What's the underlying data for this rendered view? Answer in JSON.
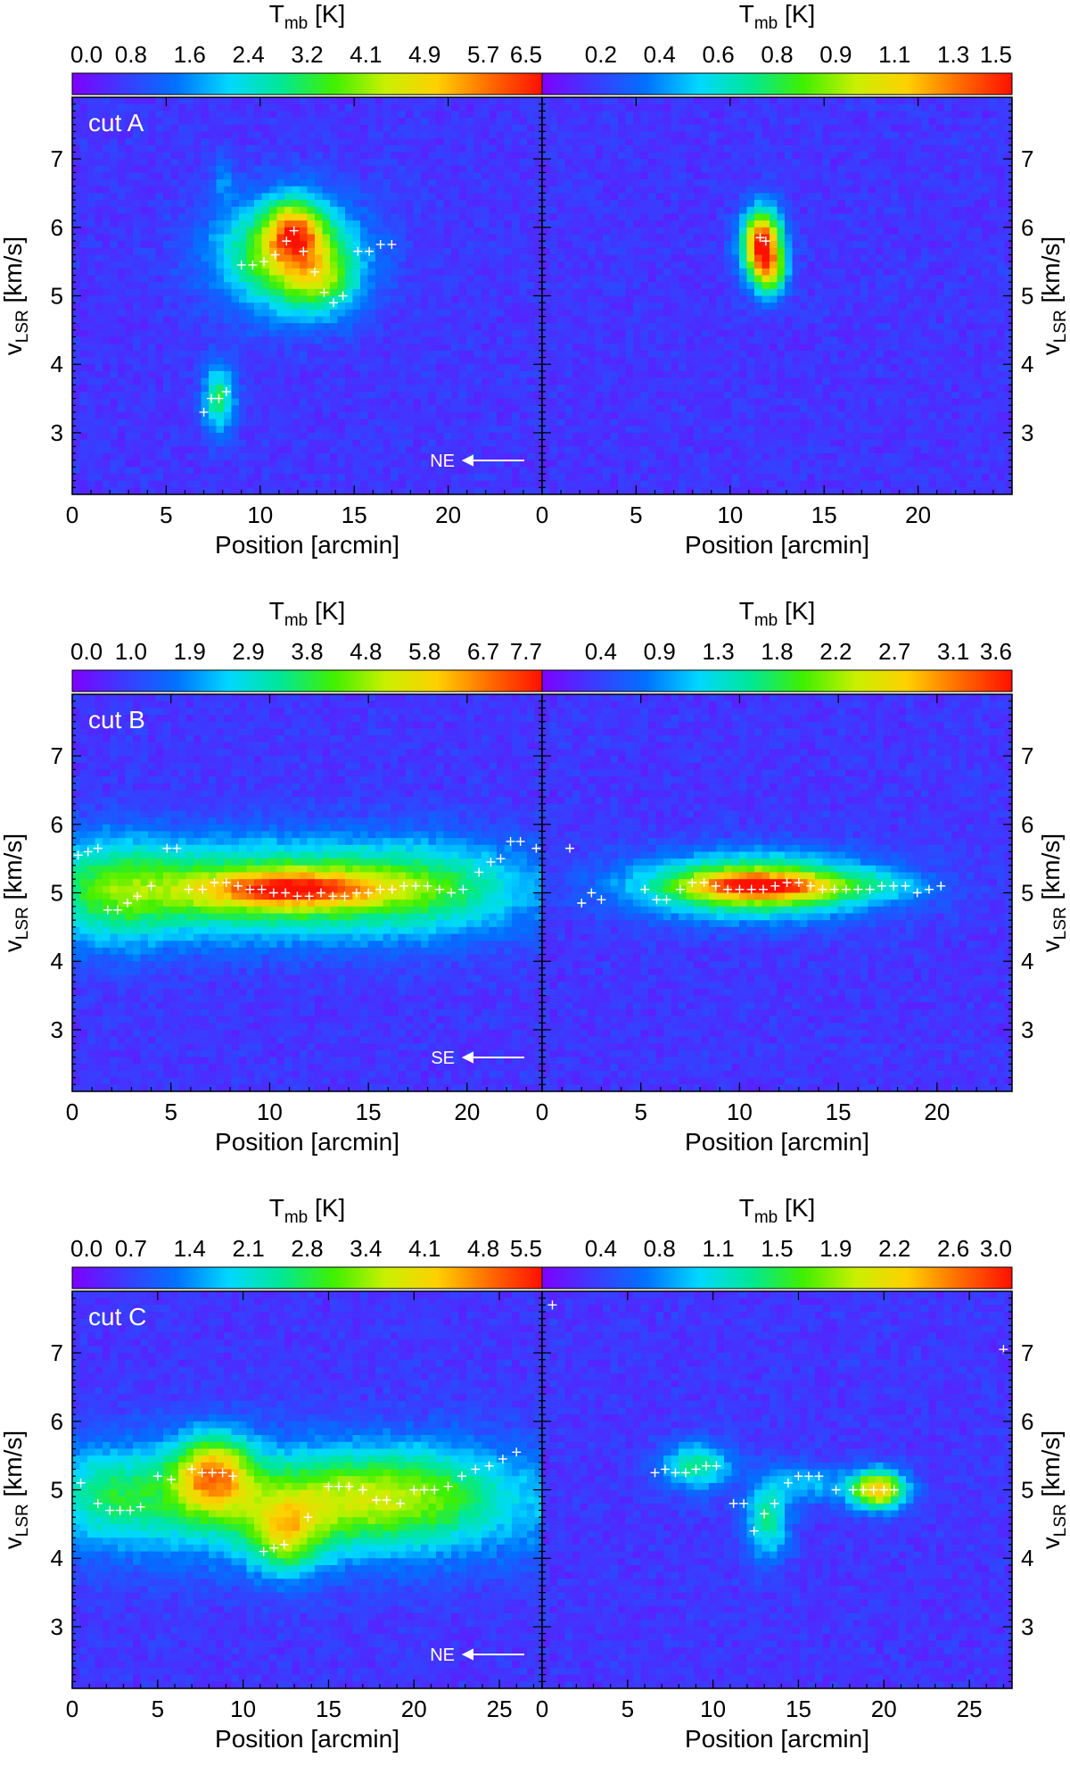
{
  "figure": {
    "rows": [
      {
        "cut_label": "cut A",
        "direction_label": "NE",
        "xlabel": "Position [arcmin]",
        "ylabel": "v",
        "ylabel_sub": "LSR",
        "ylabel_unit": " [km/s]",
        "left": {
          "cbar_title": "T",
          "cbar_sub": "mb",
          "cbar_unit": " [K]",
          "cbar_ticks": [
            "0.0",
            "0.8",
            "1.6",
            "2.4",
            "3.2",
            "4.1",
            "4.9",
            "5.7",
            "6.5"
          ],
          "x_ticks": [
            "0",
            "5",
            "10",
            "15",
            "20"
          ],
          "y_ticks": [
            "3",
            "4",
            "5",
            "6",
            "7"
          ]
        },
        "right": {
          "cbar_title": "T",
          "cbar_sub": "mb",
          "cbar_unit": " [K]",
          "cbar_ticks": [
            "0.2",
            "0.4",
            "0.6",
            "0.8",
            "0.9",
            "1.1",
            "1.3",
            "1.5"
          ],
          "x_ticks": [
            "0",
            "5",
            "10",
            "15",
            "20"
          ],
          "y_ticks": [
            "3",
            "4",
            "5",
            "6",
            "7"
          ]
        }
      },
      {
        "cut_label": "cut B",
        "direction_label": "SE",
        "xlabel": "Position [arcmin]",
        "ylabel": "v",
        "ylabel_sub": "LSR",
        "ylabel_unit": " [km/s]",
        "left": {
          "cbar_title": "T",
          "cbar_sub": "mb",
          "cbar_unit": " [K]",
          "cbar_ticks": [
            "0.0",
            "1.0",
            "1.9",
            "2.9",
            "3.8",
            "4.8",
            "5.8",
            "6.7",
            "7.7"
          ],
          "x_ticks": [
            "0",
            "5",
            "10",
            "15",
            "20"
          ],
          "y_ticks": [
            "3",
            "4",
            "5",
            "6",
            "7"
          ]
        },
        "right": {
          "cbar_title": "T",
          "cbar_sub": "mb",
          "cbar_unit": " [K]",
          "cbar_ticks": [
            "0.4",
            "0.9",
            "1.3",
            "1.8",
            "2.2",
            "2.7",
            "3.1",
            "3.6"
          ],
          "x_ticks": [
            "0",
            "5",
            "10",
            "15",
            "20"
          ],
          "y_ticks": [
            "3",
            "4",
            "5",
            "6",
            "7"
          ]
        }
      },
      {
        "cut_label": "cut C",
        "direction_label": "NE",
        "xlabel": "Position [arcmin]",
        "ylabel": "v",
        "ylabel_sub": "LSR",
        "ylabel_unit": " [km/s]",
        "left": {
          "cbar_title": "T",
          "cbar_sub": "mb",
          "cbar_unit": " [K]",
          "cbar_ticks": [
            "0.0",
            "0.7",
            "1.4",
            "2.1",
            "2.8",
            "3.4",
            "4.1",
            "4.8",
            "5.5"
          ],
          "x_ticks": [
            "0",
            "5",
            "10",
            "15",
            "20",
            "25"
          ],
          "y_ticks": [
            "3",
            "4",
            "5",
            "6",
            "7"
          ]
        },
        "right": {
          "cbar_title": "T",
          "cbar_sub": "mb",
          "cbar_unit": " [K]",
          "cbar_ticks": [
            "0.4",
            "0.8",
            "1.1",
            "1.5",
            "1.9",
            "2.2",
            "2.6",
            "3.0"
          ],
          "x_ticks": [
            "0",
            "5",
            "10",
            "15",
            "20",
            "25"
          ],
          "y_ticks": [
            "3",
            "4",
            "5",
            "6",
            "7"
          ]
        }
      }
    ],
    "colors": {
      "background": "#8a2be2",
      "colormap": [
        "#7f00ff",
        "#3b3bff",
        "#0072ff",
        "#00d8ff",
        "#00e896",
        "#3ff000",
        "#c8f000",
        "#ffd000",
        "#ff6a00",
        "#ff1000"
      ],
      "marker": "#ffffff"
    }
  },
  "chart_data": [
    {
      "type": "heatmap",
      "panel": "cut A left",
      "title": "T_mb [K]",
      "xlabel": "Position [arcmin]",
      "ylabel": "v_LSR [km/s]",
      "xlim": [
        0,
        25
      ],
      "ylim": [
        2.1,
        7.9
      ],
      "clim": [
        0.0,
        6.5
      ],
      "colorbar_ticks": [
        0.0,
        0.8,
        1.6,
        2.4,
        3.2,
        4.1,
        4.9,
        5.7,
        6.5
      ],
      "annotations": [
        "cut A",
        "NE"
      ],
      "blobs": [
        {
          "x": 11.5,
          "y": 5.6,
          "sx": 2.6,
          "sy": 0.55,
          "amp": 0.55
        },
        {
          "x": 11.8,
          "y": 5.95,
          "sx": 1.0,
          "sy": 0.3,
          "amp": 0.45
        },
        {
          "x": 13.2,
          "y": 5.2,
          "sx": 1.4,
          "sy": 0.35,
          "amp": 0.25
        },
        {
          "x": 7.8,
          "y": 3.5,
          "sx": 0.6,
          "sy": 0.35,
          "amp": 0.38
        },
        {
          "x": 8.0,
          "y": 6.7,
          "sx": 0.4,
          "sy": 0.25,
          "amp": 0.12
        }
      ],
      "peak_velocities": [
        {
          "x": 7.0,
          "y": 3.3
        },
        {
          "x": 7.4,
          "y": 3.5
        },
        {
          "x": 7.8,
          "y": 3.5
        },
        {
          "x": 8.2,
          "y": 3.6
        },
        {
          "x": 9.0,
          "y": 5.45
        },
        {
          "x": 9.6,
          "y": 5.45
        },
        {
          "x": 10.2,
          "y": 5.5
        },
        {
          "x": 10.8,
          "y": 5.6
        },
        {
          "x": 11.4,
          "y": 5.8
        },
        {
          "x": 11.8,
          "y": 5.95
        },
        {
          "x": 12.3,
          "y": 5.65
        },
        {
          "x": 12.9,
          "y": 5.35
        },
        {
          "x": 13.4,
          "y": 5.05
        },
        {
          "x": 13.9,
          "y": 4.9
        },
        {
          "x": 14.4,
          "y": 5.0
        },
        {
          "x": 15.2,
          "y": 5.65
        },
        {
          "x": 15.8,
          "y": 5.65
        },
        {
          "x": 16.4,
          "y": 5.75
        },
        {
          "x": 17.0,
          "y": 5.75
        }
      ]
    },
    {
      "type": "heatmap",
      "panel": "cut A right",
      "title": "T_mb [K]",
      "xlabel": "Position [arcmin]",
      "ylabel": "v_LSR [km/s]",
      "xlim": [
        0,
        25
      ],
      "ylim": [
        2.1,
        7.9
      ],
      "clim": [
        0.1,
        1.5
      ],
      "colorbar_ticks": [
        0.2,
        0.4,
        0.6,
        0.8,
        0.9,
        1.1,
        1.3,
        1.5
      ],
      "blobs": [
        {
          "x": 11.7,
          "y": 5.75,
          "sx": 0.75,
          "sy": 0.35,
          "amp": 0.9
        },
        {
          "x": 12.2,
          "y": 5.3,
          "sx": 0.6,
          "sy": 0.25,
          "amp": 0.35
        }
      ],
      "peak_velocities": [
        {
          "x": 11.6,
          "y": 5.85
        },
        {
          "x": 11.9,
          "y": 5.8
        }
      ]
    },
    {
      "type": "heatmap",
      "panel": "cut B left",
      "title": "T_mb [K]",
      "xlabel": "Position [arcmin]",
      "ylabel": "v_LSR [km/s]",
      "xlim": [
        0,
        23.8
      ],
      "ylim": [
        2.1,
        7.9
      ],
      "clim": [
        0.0,
        7.7
      ],
      "colorbar_ticks": [
        0.0,
        1.0,
        1.9,
        2.9,
        3.8,
        4.8,
        5.8,
        6.7,
        7.7
      ],
      "annotations": [
        "cut B",
        "SE"
      ],
      "blobs": [
        {
          "x": 10.5,
          "y": 5.05,
          "sx": 8.5,
          "sy": 0.5,
          "amp": 0.5
        },
        {
          "x": 11.0,
          "y": 5.05,
          "sx": 3.2,
          "sy": 0.18,
          "amp": 0.45
        },
        {
          "x": 2.0,
          "y": 5.0,
          "sx": 2.2,
          "sy": 0.6,
          "amp": 0.2
        },
        {
          "x": 18.0,
          "y": 5.1,
          "sx": 3.0,
          "sy": 0.45,
          "amp": 0.12
        }
      ],
      "peak_velocities": [
        {
          "x": 0.3,
          "y": 5.55
        },
        {
          "x": 0.8,
          "y": 5.6
        },
        {
          "x": 1.3,
          "y": 5.65
        },
        {
          "x": 1.8,
          "y": 4.75
        },
        {
          "x": 2.3,
          "y": 4.75
        },
        {
          "x": 2.8,
          "y": 4.85
        },
        {
          "x": 3.3,
          "y": 4.95
        },
        {
          "x": 4.0,
          "y": 5.1
        },
        {
          "x": 4.8,
          "y": 5.65
        },
        {
          "x": 5.3,
          "y": 5.65
        },
        {
          "x": 5.9,
          "y": 5.05
        },
        {
          "x": 6.6,
          "y": 5.05
        },
        {
          "x": 7.2,
          "y": 5.15
        },
        {
          "x": 7.8,
          "y": 5.15
        },
        {
          "x": 8.4,
          "y": 5.1
        },
        {
          "x": 9.0,
          "y": 5.05
        },
        {
          "x": 9.6,
          "y": 5.05
        },
        {
          "x": 10.2,
          "y": 5.0
        },
        {
          "x": 10.8,
          "y": 5.0
        },
        {
          "x": 11.4,
          "y": 4.95
        },
        {
          "x": 12.0,
          "y": 4.95
        },
        {
          "x": 12.6,
          "y": 5.0
        },
        {
          "x": 13.2,
          "y": 4.95
        },
        {
          "x": 13.8,
          "y": 4.95
        },
        {
          "x": 14.4,
          "y": 5.0
        },
        {
          "x": 15.0,
          "y": 5.0
        },
        {
          "x": 15.6,
          "y": 5.05
        },
        {
          "x": 16.2,
          "y": 5.05
        },
        {
          "x": 16.8,
          "y": 5.1
        },
        {
          "x": 17.4,
          "y": 5.1
        },
        {
          "x": 18.0,
          "y": 5.1
        },
        {
          "x": 18.6,
          "y": 5.05
        },
        {
          "x": 19.2,
          "y": 5.0
        },
        {
          "x": 19.8,
          "y": 5.05
        },
        {
          "x": 20.6,
          "y": 5.3
        },
        {
          "x": 21.2,
          "y": 5.45
        },
        {
          "x": 21.7,
          "y": 5.5
        },
        {
          "x": 22.2,
          "y": 5.75
        },
        {
          "x": 22.7,
          "y": 5.75
        },
        {
          "x": 23.5,
          "y": 5.65
        }
      ]
    },
    {
      "type": "heatmap",
      "panel": "cut B right",
      "title": "T_mb [K]",
      "xlabel": "Position [arcmin]",
      "ylabel": "v_LSR [km/s]",
      "xlim": [
        0,
        23.8
      ],
      "ylim": [
        2.1,
        7.9
      ],
      "clim": [
        0.0,
        3.6
      ],
      "colorbar_ticks": [
        0.4,
        0.9,
        1.3,
        1.8,
        2.2,
        2.7,
        3.1,
        3.6
      ],
      "blobs": [
        {
          "x": 10.8,
          "y": 5.1,
          "sx": 4.2,
          "sy": 0.32,
          "amp": 0.6
        },
        {
          "x": 11.2,
          "y": 5.1,
          "sx": 2.6,
          "sy": 0.13,
          "amp": 0.4
        },
        {
          "x": 17.5,
          "y": 5.1,
          "sx": 1.6,
          "sy": 0.15,
          "amp": 0.12
        }
      ],
      "peak_velocities": [
        {
          "x": 1.4,
          "y": 5.65
        },
        {
          "x": 2.0,
          "y": 4.85
        },
        {
          "x": 2.5,
          "y": 5.0
        },
        {
          "x": 3.0,
          "y": 4.9
        },
        {
          "x": 5.2,
          "y": 5.05
        },
        {
          "x": 5.8,
          "y": 4.9
        },
        {
          "x": 6.3,
          "y": 4.9
        },
        {
          "x": 7.0,
          "y": 5.05
        },
        {
          "x": 7.6,
          "y": 5.15
        },
        {
          "x": 8.2,
          "y": 5.15
        },
        {
          "x": 8.8,
          "y": 5.1
        },
        {
          "x": 9.4,
          "y": 5.05
        },
        {
          "x": 10.0,
          "y": 5.05
        },
        {
          "x": 10.6,
          "y": 5.05
        },
        {
          "x": 11.2,
          "y": 5.05
        },
        {
          "x": 11.8,
          "y": 5.1
        },
        {
          "x": 12.4,
          "y": 5.15
        },
        {
          "x": 13.0,
          "y": 5.15
        },
        {
          "x": 13.6,
          "y": 5.1
        },
        {
          "x": 14.2,
          "y": 5.05
        },
        {
          "x": 14.8,
          "y": 5.05
        },
        {
          "x": 15.4,
          "y": 5.05
        },
        {
          "x": 16.0,
          "y": 5.05
        },
        {
          "x": 16.6,
          "y": 5.05
        },
        {
          "x": 17.2,
          "y": 5.1
        },
        {
          "x": 17.8,
          "y": 5.1
        },
        {
          "x": 18.4,
          "y": 5.1
        },
        {
          "x": 19.0,
          "y": 5.0
        },
        {
          "x": 19.6,
          "y": 5.05
        },
        {
          "x": 20.2,
          "y": 5.1
        }
      ]
    },
    {
      "type": "heatmap",
      "panel": "cut C left",
      "title": "T_mb [K]",
      "xlabel": "Position [arcmin]",
      "ylabel": "v_LSR [km/s]",
      "xlim": [
        0,
        27.5
      ],
      "ylim": [
        2.1,
        7.9
      ],
      "clim": [
        0.0,
        5.5
      ],
      "colorbar_ticks": [
        0.0,
        0.7,
        1.4,
        2.1,
        2.8,
        3.4,
        4.1,
        4.8,
        5.5
      ],
      "annotations": [
        "cut C",
        "NE"
      ],
      "blobs": [
        {
          "x": 13.5,
          "y": 4.8,
          "sx": 12.0,
          "sy": 0.6,
          "amp": 0.35
        },
        {
          "x": 8.2,
          "y": 5.25,
          "sx": 1.6,
          "sy": 0.4,
          "amp": 0.55
        },
        {
          "x": 12.5,
          "y": 4.3,
          "sx": 1.5,
          "sy": 0.4,
          "amp": 0.35
        },
        {
          "x": 16.0,
          "y": 4.9,
          "sx": 3.5,
          "sy": 0.45,
          "amp": 0.2
        },
        {
          "x": 21.0,
          "y": 5.0,
          "sx": 3.0,
          "sy": 0.5,
          "amp": 0.15
        },
        {
          "x": 2.5,
          "y": 5.0,
          "sx": 2.5,
          "sy": 0.45,
          "amp": 0.18
        }
      ],
      "peak_velocities": [
        {
          "x": 0.5,
          "y": 5.1
        },
        {
          "x": 1.5,
          "y": 4.8
        },
        {
          "x": 2.2,
          "y": 4.7
        },
        {
          "x": 2.8,
          "y": 4.7
        },
        {
          "x": 3.4,
          "y": 4.7
        },
        {
          "x": 4.0,
          "y": 4.75
        },
        {
          "x": 5.0,
          "y": 5.2
        },
        {
          "x": 5.8,
          "y": 5.15
        },
        {
          "x": 7.0,
          "y": 5.3
        },
        {
          "x": 7.6,
          "y": 5.25
        },
        {
          "x": 8.2,
          "y": 5.25
        },
        {
          "x": 8.8,
          "y": 5.25
        },
        {
          "x": 9.4,
          "y": 5.2
        },
        {
          "x": 11.2,
          "y": 4.1
        },
        {
          "x": 11.8,
          "y": 4.15
        },
        {
          "x": 12.4,
          "y": 4.2
        },
        {
          "x": 13.8,
          "y": 4.6
        },
        {
          "x": 15.0,
          "y": 5.05
        },
        {
          "x": 15.6,
          "y": 5.05
        },
        {
          "x": 16.2,
          "y": 5.05
        },
        {
          "x": 17.0,
          "y": 5.0
        },
        {
          "x": 17.8,
          "y": 4.85
        },
        {
          "x": 18.4,
          "y": 4.85
        },
        {
          "x": 19.2,
          "y": 4.8
        },
        {
          "x": 20.0,
          "y": 5.0
        },
        {
          "x": 20.6,
          "y": 5.0
        },
        {
          "x": 21.2,
          "y": 5.0
        },
        {
          "x": 22.0,
          "y": 5.05
        },
        {
          "x": 22.8,
          "y": 5.2
        },
        {
          "x": 23.6,
          "y": 5.3
        },
        {
          "x": 24.4,
          "y": 5.35
        },
        {
          "x": 25.2,
          "y": 5.45
        },
        {
          "x": 26.0,
          "y": 5.55
        }
      ]
    },
    {
      "type": "heatmap",
      "panel": "cut C right",
      "title": "T_mb [K]",
      "xlabel": "Position [arcmin]",
      "ylabel": "v_LSR [km/s]",
      "xlim": [
        0,
        27.5
      ],
      "ylim": [
        2.1,
        7.9
      ],
      "clim": [
        0.0,
        3.0
      ],
      "colorbar_ticks": [
        0.4,
        0.8,
        1.1,
        1.5,
        1.9,
        2.2,
        2.6,
        3.0
      ],
      "blobs": [
        {
          "x": 9.0,
          "y": 5.35,
          "sx": 1.5,
          "sy": 0.25,
          "amp": 0.35
        },
        {
          "x": 13.2,
          "y": 4.55,
          "sx": 0.9,
          "sy": 0.4,
          "amp": 0.35
        },
        {
          "x": 15.5,
          "y": 5.1,
          "sx": 1.5,
          "sy": 0.2,
          "amp": 0.2
        },
        {
          "x": 19.6,
          "y": 5.0,
          "sx": 1.2,
          "sy": 0.2,
          "amp": 0.7
        }
      ],
      "peak_velocities": [
        {
          "x": 6.6,
          "y": 5.25
        },
        {
          "x": 7.2,
          "y": 5.3
        },
        {
          "x": 7.8,
          "y": 5.25
        },
        {
          "x": 8.4,
          "y": 5.25
        },
        {
          "x": 9.0,
          "y": 5.3
        },
        {
          "x": 9.6,
          "y": 5.35
        },
        {
          "x": 10.2,
          "y": 5.35
        },
        {
          "x": 11.2,
          "y": 4.8
        },
        {
          "x": 11.8,
          "y": 4.8
        },
        {
          "x": 12.4,
          "y": 4.4
        },
        {
          "x": 13.0,
          "y": 4.65
        },
        {
          "x": 13.6,
          "y": 4.8
        },
        {
          "x": 14.4,
          "y": 5.1
        },
        {
          "x": 15.0,
          "y": 5.2
        },
        {
          "x": 15.6,
          "y": 5.2
        },
        {
          "x": 16.2,
          "y": 5.2
        },
        {
          "x": 17.2,
          "y": 5.0
        },
        {
          "x": 18.2,
          "y": 5.0
        },
        {
          "x": 18.8,
          "y": 5.0
        },
        {
          "x": 19.4,
          "y": 5.0
        },
        {
          "x": 20.0,
          "y": 5.0
        },
        {
          "x": 20.6,
          "y": 5.0
        },
        {
          "x": 0.6,
          "y": 7.7
        },
        {
          "x": 27.0,
          "y": 7.05
        }
      ]
    }
  ]
}
